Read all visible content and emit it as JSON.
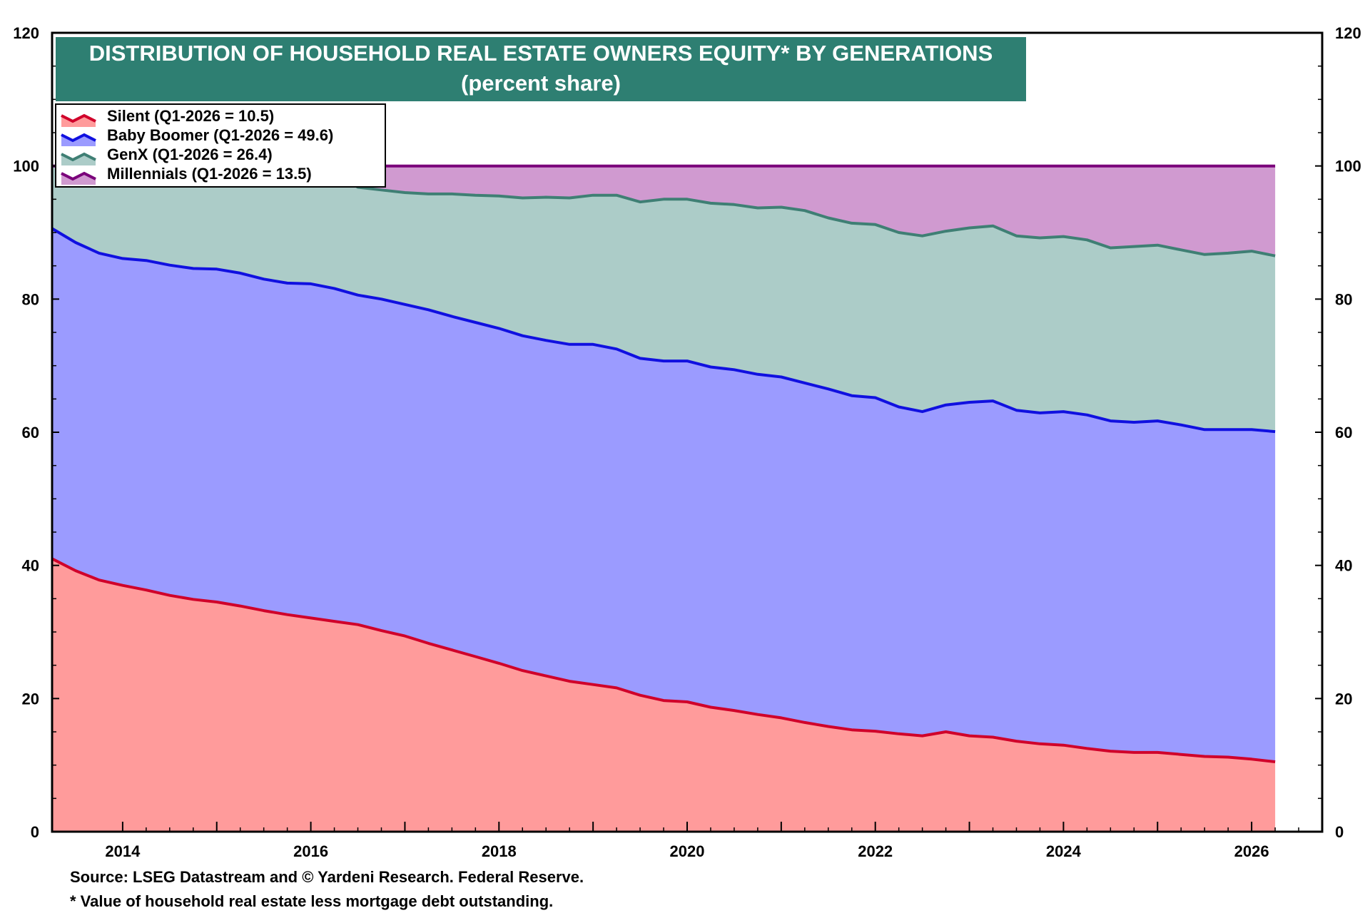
{
  "chart_data": {
    "type": "area",
    "stacked": true,
    "title": "DISTRIBUTION OF HOUSEHOLD REAL ESTATE OWNERS EQUITY* BY GENERATIONS",
    "subtitle": "(percent share)",
    "xlabel": "",
    "ylabel": "",
    "ylim": [
      0,
      120
    ],
    "yticks": [
      0,
      20,
      40,
      60,
      80,
      100,
      120
    ],
    "xlim": [
      2013.25,
      2026.75
    ],
    "xticks": [
      2014,
      2016,
      2018,
      2020,
      2022,
      2024,
      2026
    ],
    "secondary_y_axis": true,
    "grid": false,
    "legend_position": "top-left",
    "x": [
      2013.25,
      2013.5,
      2013.75,
      2014.0,
      2014.25,
      2014.5,
      2014.75,
      2015.0,
      2015.25,
      2015.5,
      2015.75,
      2016.0,
      2016.25,
      2016.5,
      2016.75,
      2017.0,
      2017.25,
      2017.5,
      2017.75,
      2018.0,
      2018.25,
      2018.5,
      2018.75,
      2019.0,
      2019.25,
      2019.5,
      2019.75,
      2020.0,
      2020.25,
      2020.5,
      2020.75,
      2021.0,
      2021.25,
      2021.5,
      2021.75,
      2022.0,
      2022.25,
      2022.5,
      2022.75,
      2023.0,
      2023.25,
      2023.5,
      2023.75,
      2024.0,
      2024.25,
      2024.5,
      2024.75,
      2025.0,
      2025.25,
      2025.5,
      2025.75,
      2026.0,
      2026.25
    ],
    "series": [
      {
        "name": "Silent",
        "label": "Silent (Q1-2026 = 10.5)",
        "color_line": "#d0002a",
        "color_fill": "#ff9b9b",
        "values": [
          41.0,
          39.2,
          37.8,
          37.0,
          36.3,
          35.5,
          34.9,
          34.5,
          33.9,
          33.2,
          32.6,
          32.1,
          31.6,
          31.1,
          30.2,
          29.4,
          28.3,
          27.3,
          26.3,
          25.3,
          24.2,
          23.4,
          22.6,
          22.1,
          21.6,
          20.5,
          19.7,
          19.5,
          18.7,
          18.2,
          17.6,
          17.1,
          16.4,
          15.8,
          15.3,
          15.1,
          14.7,
          14.4,
          15.0,
          14.4,
          14.2,
          13.6,
          13.2,
          13.0,
          12.5,
          12.1,
          11.9,
          11.9,
          11.6,
          11.3,
          11.2,
          10.9,
          10.5
        ]
      },
      {
        "name": "Baby Boomer",
        "label": "Baby Boomer (Q1-2026 = 49.6)",
        "color_line": "#1010e0",
        "color_fill": "#9b9bff",
        "values": [
          49.6,
          49.3,
          49.1,
          49.1,
          49.5,
          49.6,
          49.7,
          50.0,
          50.0,
          49.8,
          49.8,
          50.2,
          50.0,
          49.5,
          49.8,
          49.8,
          50.1,
          50.1,
          50.2,
          50.3,
          50.3,
          50.4,
          50.6,
          51.1,
          50.9,
          50.6,
          51.0,
          51.2,
          51.1,
          51.2,
          51.1,
          51.2,
          51.0,
          50.7,
          50.2,
          50.1,
          49.1,
          48.7,
          49.1,
          50.1,
          50.5,
          49.7,
          49.7,
          50.1,
          50.1,
          49.6,
          49.6,
          49.8,
          49.5,
          49.1,
          49.2,
          49.5,
          49.6
        ]
      },
      {
        "name": "GenX",
        "label": "GenX (Q1-2026 = 26.4)",
        "color_line": "#3f7f74",
        "color_fill": "#acccc8",
        "values": [
          9.4,
          11.5,
          13.1,
          13.9,
          14.2,
          14.9,
          15.4,
          15.5,
          16.1,
          16.8,
          17.2,
          17.0,
          17.5,
          16.2,
          16.4,
          16.8,
          17.4,
          18.4,
          19.1,
          19.9,
          20.7,
          21.5,
          22.0,
          22.4,
          23.1,
          23.5,
          24.3,
          24.3,
          24.6,
          24.8,
          25.0,
          25.5,
          25.9,
          25.7,
          25.9,
          26.0,
          26.2,
          26.4,
          26.1,
          26.2,
          26.3,
          26.2,
          26.3,
          26.3,
          26.3,
          26.0,
          26.4,
          26.4,
          26.3,
          26.3,
          26.5,
          26.8,
          26.4
        ]
      },
      {
        "name": "Millennials",
        "label": "Millennials (Q1-2026 = 13.5)",
        "color_line": "#7a007a",
        "color_fill": "#d09ad0",
        "values": [
          0.0,
          0.0,
          0.0,
          0.0,
          0.0,
          0.0,
          0.0,
          0.0,
          0.0,
          0.2,
          0.4,
          0.7,
          0.9,
          3.2,
          3.6,
          4.0,
          4.2,
          4.2,
          4.4,
          4.5,
          4.8,
          4.7,
          4.8,
          4.4,
          4.4,
          5.4,
          5.0,
          5.0,
          5.6,
          5.8,
          6.3,
          6.2,
          6.7,
          7.8,
          8.6,
          8.8,
          10.0,
          10.5,
          9.8,
          9.3,
          9.0,
          10.5,
          10.8,
          10.6,
          11.1,
          12.3,
          12.1,
          11.9,
          12.6,
          13.3,
          13.1,
          12.8,
          13.5
        ]
      }
    ]
  },
  "legend": {
    "items": [
      "Silent (Q1-2026 = 10.5)",
      "Baby Boomer (Q1-2026 = 49.6)",
      "GenX (Q1-2026 = 26.4)",
      "Millennials (Q1-2026 = 13.5)"
    ]
  },
  "title_box_color": "#2e7f72",
  "footer": {
    "source": "Source: LSEG Datastream and © Yardeni Research. Federal Reserve.",
    "note": "* Value of household real estate less mortgage debt outstanding."
  }
}
